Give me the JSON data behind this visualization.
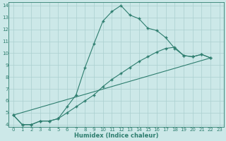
{
  "xlabel": "Humidex (Indice chaleur)",
  "bg_color": "#cce8e8",
  "grid_color": "#aacfcf",
  "line_color": "#2d7d6e",
  "xlim": [
    -0.5,
    23.5
  ],
  "ylim": [
    3.8,
    14.3
  ],
  "yticks": [
    4,
    5,
    6,
    7,
    8,
    9,
    10,
    11,
    12,
    13,
    14
  ],
  "xticks": [
    0,
    1,
    2,
    3,
    4,
    5,
    6,
    7,
    8,
    9,
    10,
    11,
    12,
    13,
    14,
    15,
    16,
    17,
    18,
    19,
    20,
    21,
    22,
    23
  ],
  "line1_x": [
    0,
    1,
    2,
    3,
    4,
    5,
    6,
    7,
    8,
    9,
    10,
    11,
    12,
    13,
    14,
    15,
    16,
    17,
    18,
    19,
    20,
    21,
    22
  ],
  "line1_y": [
    4.8,
    4.0,
    4.0,
    4.3,
    4.3,
    4.5,
    5.5,
    6.5,
    8.8,
    10.8,
    12.7,
    13.5,
    14.0,
    13.2,
    12.9,
    12.1,
    11.9,
    11.3,
    10.4,
    9.8,
    9.7,
    9.9,
    9.6
  ],
  "line2_x": [
    0,
    1,
    2,
    3,
    4,
    5,
    6,
    7,
    8,
    9,
    10,
    11,
    12,
    13,
    14,
    15,
    16,
    17,
    18,
    19,
    20,
    21,
    22
  ],
  "line2_y": [
    4.8,
    4.0,
    4.0,
    4.3,
    4.3,
    4.5,
    5.0,
    5.5,
    6.0,
    6.5,
    7.2,
    7.8,
    8.3,
    8.8,
    9.3,
    9.7,
    10.1,
    10.4,
    10.5,
    9.8,
    9.7,
    9.9,
    9.6
  ],
  "line3_x": [
    0,
    22
  ],
  "line3_y": [
    4.8,
    9.6
  ],
  "marker": "+",
  "markersize": 3,
  "linewidth": 0.8,
  "tick_fontsize": 5,
  "xlabel_fontsize": 6
}
